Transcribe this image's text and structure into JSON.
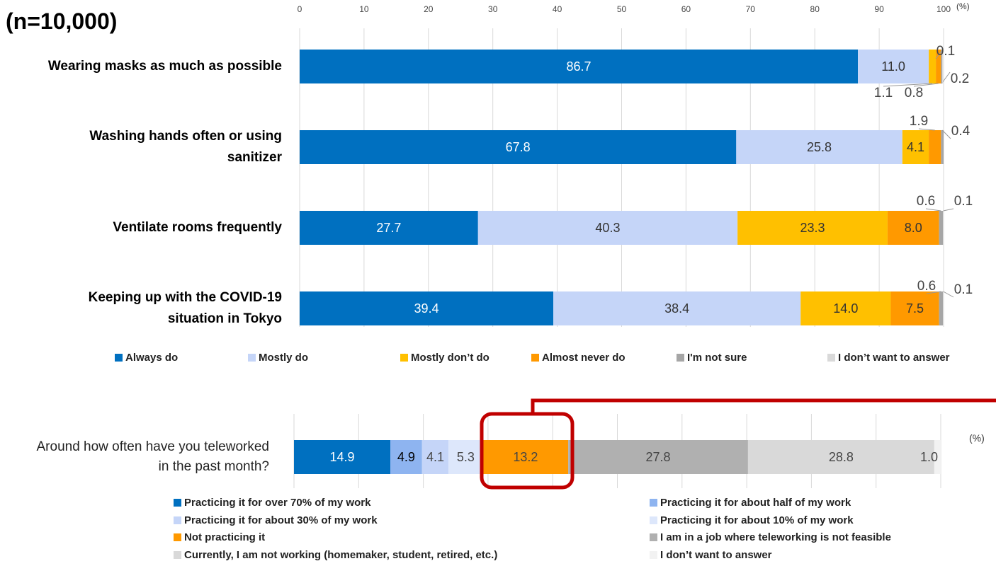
{
  "chart_data": [
    {
      "type": "stacked_barh",
      "title": "(n=10,000)",
      "x_label": "(%)",
      "categories": [
        "Wearing masks as much as possible",
        "Washing hands often or using sanitizer",
        "Ventilate rooms frequently",
        "Keeping up with the COVID-19 situation in Tokyo"
      ],
      "series": [
        {
          "name": "Always do",
          "color": "#0070c0",
          "values": [
            86.7,
            67.8,
            27.7,
            39.4
          ]
        },
        {
          "name": "Mostly do",
          "color": "#c5d5f8",
          "values": [
            11.0,
            25.8,
            40.3,
            38.4
          ],
          "value_labels": [
            "11.0",
            "25.8",
            "40.3",
            "38.4"
          ]
        },
        {
          "name": "Mostly don’t do",
          "color": "#ffc000",
          "values": [
            1.1,
            4.1,
            23.3,
            14.0
          ],
          "value_labels": [
            "1.1",
            "4.1",
            "23.3",
            "14.0"
          ]
        },
        {
          "name": "Almost never do",
          "color": "#ff9900",
          "values": [
            0.8,
            1.9,
            8.0,
            7.5
          ],
          "value_labels": [
            "0.8",
            "1.9",
            "8.0",
            "7.5"
          ]
        },
        {
          "name": "I'm not sure",
          "color": "#a6a6a6",
          "values": [
            0.2,
            0.4,
            0.6,
            0.6
          ]
        },
        {
          "name": "I don’t want to answer",
          "color": "#d9d9d9",
          "values": [
            0.1,
            null,
            0.1,
            0.1
          ]
        }
      ],
      "xlim": [
        0,
        100
      ],
      "xticks": [
        0,
        10,
        20,
        30,
        40,
        50,
        60,
        70,
        80,
        90,
        100
      ],
      "grid": true
    },
    {
      "type": "stacked_barh",
      "x_label": "(%)",
      "categories": [
        "Around how often have you teleworked in the past month?"
      ],
      "series": [
        {
          "name": "Practicing it for over 70% of my work",
          "color": "#0070c0",
          "values": [
            14.9
          ]
        },
        {
          "name": "Practicing it for about half of my work",
          "color": "#8eb4f0",
          "values": [
            4.9
          ]
        },
        {
          "name": "Practicing it for about 30% of my work",
          "color": "#c5d5f8",
          "values": [
            4.1
          ]
        },
        {
          "name": "Practicing it for about 10% of my work",
          "color": "#dde7fb",
          "values": [
            5.3
          ]
        },
        {
          "name": "Not practicing it",
          "color": "#ff9900",
          "values": [
            13.2
          ]
        },
        {
          "name": "I am in a job where teleworking is not feasible",
          "color": "#b0b0b0",
          "values": [
            27.8
          ]
        },
        {
          "name": "Currently, I am not working (homemaker, student, retired, etc.)",
          "color": "#d9d9d9",
          "values": [
            28.8
          ]
        },
        {
          "name": "I don’t want to answer",
          "color": "#f2f2f2",
          "values": [
            1.0
          ],
          "value_labels": [
            "1.0"
          ]
        }
      ],
      "xlim": [
        0,
        100
      ],
      "grid": true
    }
  ]
}
